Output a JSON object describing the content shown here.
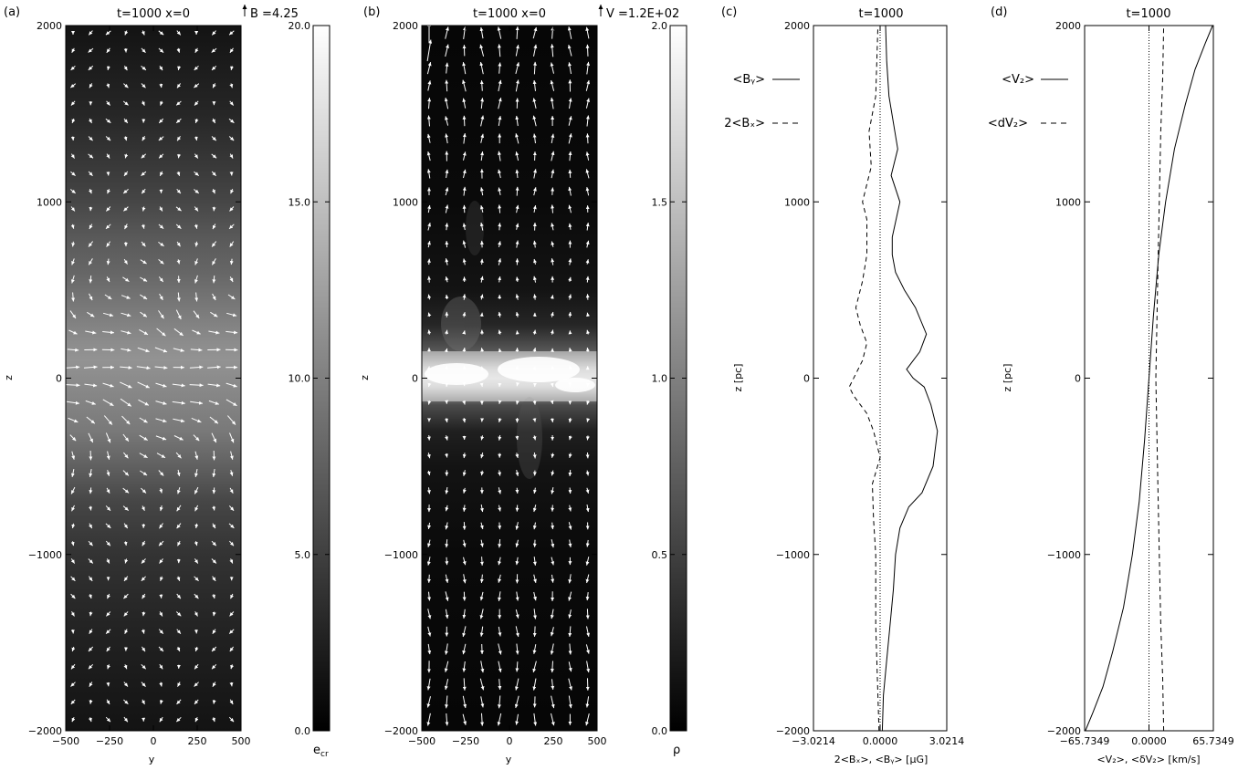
{
  "panels": [
    {
      "label": "(a)",
      "title": "t=1000   x=0",
      "vector_key": "B =4.25",
      "ylabel": "z",
      "xlabel": "y",
      "xticks": [
        "−500",
        "−250",
        "0",
        "250",
        "500"
      ],
      "yticks": [
        "2000",
        "1000",
        "0",
        "−1000",
        "−2000"
      ],
      "colorbar_ticks": [
        "20.0",
        "15.0",
        "10.0",
        "5.0",
        "0.0"
      ],
      "colorbar_label": "e",
      "colorbar_label_sub": "cr"
    },
    {
      "label": "(b)",
      "title": "t=1000   x=0",
      "vector_key": "V =1.2E+02",
      "ylabel": "z",
      "xlabel": "y",
      "xticks": [
        "−500",
        "−250",
        "0",
        "250",
        "500"
      ],
      "yticks": [
        "2000",
        "1000",
        "0",
        "−1000",
        "−2000"
      ],
      "colorbar_ticks": [
        "2.0",
        "1.5",
        "1.0",
        "0.5",
        "0.0"
      ],
      "colorbar_label": "ρ"
    },
    {
      "label": "(c)",
      "title": "t=1000",
      "ylabel": "z [pc]",
      "xlabel": "2<Bₓ>, <Bᵧ> [μG]",
      "xticks": [
        "−3.0214",
        "0.0000",
        "3.0214"
      ],
      "yticks": [
        "2000",
        "1000",
        "0",
        "−1000",
        "−2000"
      ],
      "legend": [
        "<Bᵧ>",
        "2<Bₓ>"
      ]
    },
    {
      "label": "(d)",
      "title": "t=1000",
      "ylabel": "z [pc]",
      "xlabel": "<V₂>, <δV₂> [km/s]",
      "xticks": [
        "−65.7349",
        "0.0000",
        "65.7349"
      ],
      "yticks": [
        "2000",
        "1000",
        "0",
        "−1000",
        "−2000"
      ],
      "legend": [
        "<V₂>",
        "<dV₂>"
      ]
    }
  ],
  "chart_data": [
    {
      "type": "heatmap",
      "title": "t=1000   x=0",
      "xlabel": "y",
      "ylabel": "z",
      "xlim": [
        -500,
        500
      ],
      "ylim": [
        -2000,
        2000
      ],
      "colorbar": {
        "label": "e_cr",
        "range": [
          0,
          20
        ],
        "ticks": [
          0,
          5,
          10,
          15,
          20
        ]
      },
      "profile_z": [
        -2000,
        -1500,
        -1000,
        -700,
        -500,
        -300,
        -100,
        0,
        100,
        200,
        400,
        600,
        800,
        1000,
        1500,
        2000
      ],
      "profile_value": [
        1.5,
        2.5,
        4.0,
        5.5,
        7.5,
        9.5,
        10.5,
        11.0,
        11.5,
        11.0,
        9.5,
        8.0,
        7.0,
        5.5,
        3.0,
        1.5
      ],
      "overlay": "magnetic field vectors, key B = 4.25"
    },
    {
      "type": "heatmap",
      "title": "t=1000   x=0",
      "xlabel": "y",
      "ylabel": "z",
      "xlim": [
        -500,
        500
      ],
      "ylim": [
        -2000,
        2000
      ],
      "colorbar": {
        "label": "ρ",
        "range": [
          0,
          2
        ],
        "ticks": [
          0,
          0.5,
          1.0,
          1.5,
          2.0
        ]
      },
      "profile_z": [
        -2000,
        -1000,
        -500,
        -300,
        -150,
        -50,
        0,
        50,
        150,
        300,
        500,
        1000,
        2000
      ],
      "profile_value": [
        0.05,
        0.08,
        0.15,
        0.25,
        0.6,
        1.6,
        1.8,
        1.6,
        0.7,
        0.3,
        0.15,
        0.08,
        0.05
      ],
      "overlay": "velocity vectors, key V = 1.2E+02"
    },
    {
      "type": "line",
      "title": "t=1000",
      "xlabel": "2<Bx>, <By> [μG]",
      "ylabel": "z [pc]",
      "xlim": [
        -3.0214,
        3.0214
      ],
      "ylim": [
        -2000,
        2000
      ],
      "series": [
        {
          "name": "<By>",
          "style": "solid",
          "x": [
            0.1,
            0.15,
            0.3,
            0.45,
            0.6,
            0.7,
            0.9,
            1.3,
            1.9,
            2.4,
            2.6,
            2.3,
            2.0,
            1.5,
            1.2,
            1.8,
            2.1,
            1.6,
            1.1,
            0.7,
            0.55,
            0.55,
            0.9,
            0.5,
            0.8,
            0.6,
            0.4,
            0.3,
            0.25
          ],
          "z": [
            -2000,
            -1800,
            -1600,
            -1400,
            -1200,
            -1000,
            -850,
            -730,
            -650,
            -500,
            -300,
            -150,
            -50,
            0,
            50,
            150,
            250,
            400,
            500,
            600,
            700,
            800,
            1000,
            1150,
            1300,
            1450,
            1600,
            1800,
            2000
          ]
        },
        {
          "name": "2<Bx>",
          "style": "dashed",
          "x": [
            -0.05,
            -0.1,
            -0.15,
            -0.2,
            -0.2,
            -0.2,
            -0.3,
            -0.35,
            0.0,
            -0.3,
            -0.6,
            -1.2,
            -1.4,
            -0.8,
            -0.6,
            -0.9,
            -1.1,
            -0.8,
            -0.6,
            -0.6,
            -0.8,
            -0.4,
            -0.5,
            -0.2,
            -0.15,
            -0.1
          ],
          "z": [
            -2000,
            -1800,
            -1600,
            -1400,
            -1200,
            -1000,
            -800,
            -600,
            -450,
            -300,
            -200,
            -100,
            -50,
            100,
            200,
            300,
            400,
            550,
            700,
            900,
            1000,
            1200,
            1400,
            1600,
            1800,
            2000
          ]
        },
        {
          "name": "zero",
          "style": "dotted",
          "x": [
            0,
            0
          ],
          "z": [
            -2000,
            2000
          ]
        }
      ]
    },
    {
      "type": "line",
      "title": "t=1000",
      "xlabel": "<Vz>, <δVz> [km/s]",
      "ylabel": "z [pc]",
      "xlim": [
        -65.7349,
        65.7349
      ],
      "ylim": [
        -2000,
        2000
      ],
      "series": [
        {
          "name": "<Vz>",
          "style": "solid",
          "x": [
            -65.0,
            -57.5,
            -47.0,
            -37.0,
            -26.0,
            -17.0,
            -10.0,
            -4.5,
            0.0,
            4.5,
            10.0,
            17.0,
            26.0,
            37.0,
            47.0,
            57.5,
            65.0
          ],
          "z": [
            -2000,
            -1900,
            -1750,
            -1550,
            -1300,
            -1000,
            -700,
            -350,
            0,
            350,
            700,
            1000,
            1300,
            1550,
            1750,
            1900,
            2000
          ]
        },
        {
          "name": "<dVz>",
          "style": "dashed",
          "x": [
            15.0,
            14.0,
            12.0,
            10.5,
            9.0,
            8.0,
            7.0,
            8.0,
            9.0,
            10.5,
            12.0,
            14.0,
            15.0
          ],
          "z": [
            -2000,
            -1700,
            -1400,
            -1000,
            -600,
            -300,
            0,
            300,
            600,
            1000,
            1400,
            1700,
            2000
          ]
        },
        {
          "name": "zero",
          "style": "dotted",
          "x": [
            0,
            0
          ],
          "z": [
            -2000,
            2000
          ]
        }
      ]
    }
  ]
}
